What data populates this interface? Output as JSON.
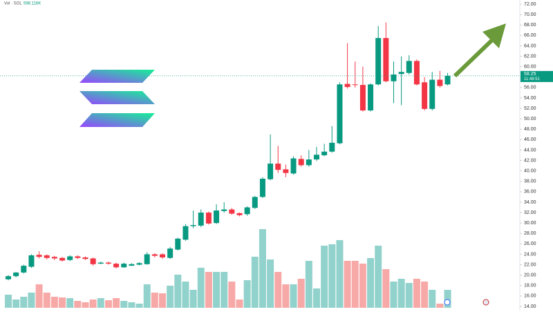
{
  "chart_data": {
    "type": "candlestick",
    "volume_title": "Vol · SOL",
    "volume_value_label": "598.116K",
    "last_price": 58.25,
    "countdown": "11:48:51",
    "ylim": [
      13.2,
      72.8
    ],
    "yticks": [
      {
        "value": 14,
        "label": "14.00"
      },
      {
        "value": 16,
        "label": "16.00"
      },
      {
        "value": 18,
        "label": "18.00"
      },
      {
        "value": 20,
        "label": "20.00"
      },
      {
        "value": 22,
        "label": "22.00"
      },
      {
        "value": 24,
        "label": "24.00"
      },
      {
        "value": 26,
        "label": "26.00"
      },
      {
        "value": 28,
        "label": "28.00"
      },
      {
        "value": 30,
        "label": "30.00"
      },
      {
        "value": 32,
        "label": "32.00"
      },
      {
        "value": 34,
        "label": "34.00"
      },
      {
        "value": 36,
        "label": "36.00"
      },
      {
        "value": 38,
        "label": "38.00"
      },
      {
        "value": 40,
        "label": "40.00"
      },
      {
        "value": 42,
        "label": "42.00"
      },
      {
        "value": 44,
        "label": "44.00"
      },
      {
        "value": 46,
        "label": "46.00"
      },
      {
        "value": 48,
        "label": "48.00"
      },
      {
        "value": 50,
        "label": "50.00"
      },
      {
        "value": 52,
        "label": "52.00"
      },
      {
        "value": 54,
        "label": "54.00"
      },
      {
        "value": 56,
        "label": "56.00"
      },
      {
        "value": 58,
        "label": "58.00"
      },
      {
        "value": 60,
        "label": "60.00"
      },
      {
        "value": 62,
        "label": "62.00"
      },
      {
        "value": 64,
        "label": "64.00"
      },
      {
        "value": 66,
        "label": "66.00"
      },
      {
        "value": 68,
        "label": "68.00"
      },
      {
        "value": 70,
        "label": "70.00"
      },
      {
        "value": 72,
        "label": "72.00"
      }
    ],
    "up_color": "#089981",
    "down_color": "#f23645",
    "volume_up_color": "#92d2cc",
    "volume_down_color": "#f7a9a7",
    "volume_ylim": [
      0,
      3000
    ],
    "open": [
      19.2,
      19.8,
      20.5,
      21.6,
      23.9,
      23.8,
      23.5,
      23.3,
      22.9,
      23.6,
      23.4,
      23.2,
      22.2,
      22.4,
      22.2,
      21.5,
      21.8,
      22.0,
      22.1,
      24.0,
      24.0,
      23.3,
      24.9,
      26.8,
      29.4,
      29.5,
      32.0,
      30.0,
      32.3,
      32.6,
      31.9,
      31.7,
      32.9,
      35.0,
      38.4,
      41.4,
      40.3,
      39.5,
      42.3,
      41.1,
      42.2,
      43.0,
      43.7,
      45.3,
      56.7,
      56.6,
      56.5,
      51.6,
      56.6,
      65.5,
      57.2,
      58.6,
      58.8,
      61.1,
      57.0,
      51.9,
      57.5,
      56.6
    ],
    "high": [
      20.0,
      20.6,
      22.0,
      24.0,
      24.6,
      24.0,
      23.7,
      23.5,
      23.8,
      23.8,
      23.6,
      23.4,
      22.6,
      22.6,
      22.4,
      22.4,
      22.3,
      22.5,
      24.4,
      24.2,
      24.2,
      25.4,
      27.2,
      29.8,
      32.4,
      32.6,
      32.2,
      33.6,
      34.0,
      32.9,
      32.0,
      33.2,
      35.2,
      38.8,
      47.0,
      44.8,
      41.2,
      42.8,
      43.0,
      44.0,
      44.6,
      45.2,
      48.6,
      57.0,
      64.5,
      61.0,
      60.0,
      56.8,
      67.8,
      68.5,
      61.0,
      62.0,
      62.2,
      61.4,
      58.0,
      59.0,
      59.2,
      58.8
    ],
    "low": [
      19.0,
      19.6,
      20.3,
      21.4,
      23.2,
      23.0,
      22.9,
      22.6,
      22.7,
      23.1,
      22.9,
      21.8,
      22.1,
      22.0,
      21.3,
      21.4,
      21.8,
      21.9,
      22.0,
      23.4,
      23.1,
      23.1,
      24.7,
      26.6,
      29.0,
      29.2,
      29.7,
      29.8,
      32.0,
      31.6,
      31.3,
      31.4,
      32.7,
      34.8,
      38.2,
      39.6,
      38.8,
      39.3,
      40.8,
      40.8,
      41.9,
      42.8,
      43.5,
      45.1,
      55.8,
      56.0,
      51.4,
      51.4,
      56.4,
      57.0,
      53.0,
      52.6,
      58.5,
      56.4,
      51.6,
      51.6,
      56.0,
      56.4
    ],
    "close": [
      19.8,
      20.5,
      21.8,
      23.8,
      23.5,
      23.3,
      23.2,
      22.8,
      23.6,
      23.3,
      23.1,
      22.1,
      22.4,
      22.2,
      21.5,
      22.2,
      22.1,
      22.3,
      24.0,
      23.7,
      23.4,
      25.1,
      27.0,
      29.4,
      29.6,
      32.0,
      29.9,
      32.4,
      32.6,
      31.8,
      31.5,
      33.0,
      35.0,
      38.5,
      41.4,
      40.2,
      39.6,
      42.4,
      41.1,
      42.2,
      43.1,
      43.7,
      45.4,
      56.6,
      56.1,
      56.5,
      51.6,
      56.6,
      65.5,
      57.2,
      58.5,
      59.0,
      61.1,
      56.6,
      51.9,
      57.5,
      56.3,
      58.25
    ],
    "volume": [
      437,
      276,
      368,
      506,
      782,
      506,
      368,
      345,
      322,
      230,
      184,
      276,
      322,
      253,
      322,
      230,
      184,
      138,
      782,
      506,
      483,
      736,
      1104,
      874,
      598,
      1334,
      1196,
      1196,
      1196,
      874,
      276,
      920,
      1702,
      2622,
      1610,
      1196,
      782,
      782,
      966,
      1564,
      644,
      2070,
      2116,
      2254,
      1564,
      1564,
      1472,
      1656,
      2070,
      1288,
      874,
      966,
      828,
      966,
      874,
      598,
      138,
      598.116
    ]
  }
}
